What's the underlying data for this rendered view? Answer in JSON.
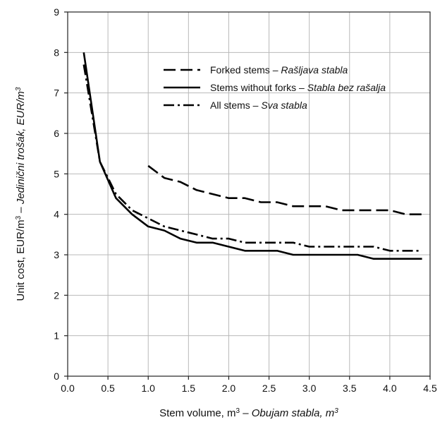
{
  "chart_data": {
    "type": "line",
    "xlabel": {
      "main": "Stem volume, m",
      "sup": "3",
      "sep": " – ",
      "italic": "Obujam stabla, m",
      "italic_sup": "3"
    },
    "ylabel": {
      "main": "Unit cost, EUR/m",
      "sup": "3",
      "sep": " – ",
      "italic": "Jedinični trošak, EUR/m",
      "italic_sup": "3"
    },
    "xlim": [
      0,
      4.5
    ],
    "ylim": [
      0,
      9
    ],
    "x_ticks": [
      "0.0",
      "0.5",
      "1.0",
      "1.5",
      "2.0",
      "2.5",
      "3.0",
      "3.5",
      "4.0",
      "4.5"
    ],
    "y_ticks": [
      "0",
      "1",
      "2",
      "3",
      "4",
      "5",
      "6",
      "7",
      "8",
      "9"
    ],
    "grid": true,
    "legend_position": "top-right",
    "series": [
      {
        "name": "Forked stems",
        "name_italic": "Rašljava stabla",
        "dash": "dashed",
        "x": [
          1.0,
          1.2,
          1.4,
          1.6,
          1.8,
          2.0,
          2.2,
          2.4,
          2.6,
          2.8,
          3.0,
          3.2,
          3.4,
          3.6,
          3.8,
          4.0,
          4.2,
          4.4
        ],
        "y": [
          5.2,
          4.9,
          4.8,
          4.6,
          4.5,
          4.4,
          4.4,
          4.3,
          4.3,
          4.2,
          4.2,
          4.2,
          4.1,
          4.1,
          4.1,
          4.1,
          4.0,
          4.0
        ]
      },
      {
        "name": "Stems without forks",
        "name_italic": "Stabla bez rašalja",
        "dash": "solid",
        "x": [
          0.2,
          0.4,
          0.6,
          0.8,
          1.0,
          1.2,
          1.4,
          1.6,
          1.8,
          2.0,
          2.2,
          2.4,
          2.6,
          2.8,
          3.0,
          3.2,
          3.4,
          3.6,
          3.8,
          4.0,
          4.2,
          4.4
        ],
        "y": [
          8.0,
          5.3,
          4.4,
          4.0,
          3.7,
          3.6,
          3.4,
          3.3,
          3.3,
          3.2,
          3.1,
          3.1,
          3.1,
          3.0,
          3.0,
          3.0,
          3.0,
          3.0,
          2.9,
          2.9,
          2.9,
          2.9
        ]
      },
      {
        "name": "All stems",
        "name_italic": "Sva stabla",
        "dash": "dashdot",
        "x": [
          0.2,
          0.4,
          0.6,
          0.8,
          1.0,
          1.2,
          1.4,
          1.6,
          1.8,
          2.0,
          2.2,
          2.4,
          2.6,
          2.8,
          3.0,
          3.2,
          3.4,
          3.6,
          3.8,
          4.0,
          4.2,
          4.4
        ],
        "y": [
          7.7,
          5.3,
          4.5,
          4.1,
          3.9,
          3.7,
          3.6,
          3.5,
          3.4,
          3.4,
          3.3,
          3.3,
          3.3,
          3.3,
          3.2,
          3.2,
          3.2,
          3.2,
          3.2,
          3.1,
          3.1,
          3.1
        ]
      }
    ]
  }
}
